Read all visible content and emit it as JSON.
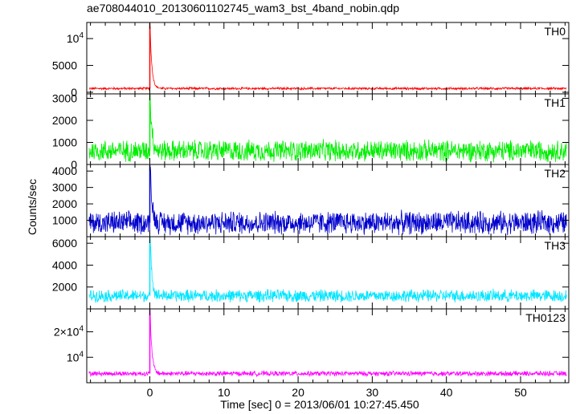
{
  "chart_data": {
    "type": "line",
    "title": "ae708044010_20130601102745_wam3_bst_4band_nobin.qdp",
    "xlabel": "Time [sec] 0 = 2013/06/01 10:27:45.450",
    "ylabel": "Counts/sec",
    "xlim": [
      -8.5,
      56.5
    ],
    "x_ticks": [
      0,
      10,
      20,
      30,
      40,
      50
    ],
    "x_tick_labels": [
      "0",
      "10",
      "20",
      "30",
      "40",
      "50"
    ],
    "x_minor_step": 2,
    "burst_time": 0.0,
    "grid": false,
    "panels": [
      {
        "name": "TH0",
        "color": "#ff0000",
        "ylim": [
          -300,
          13000
        ],
        "y_ticks": [
          {
            "value": 0,
            "label": "0"
          },
          {
            "value": 5000,
            "label": "5000"
          },
          {
            "value": 10000,
            "label": "10",
            "exp": "4"
          }
        ],
        "baseline": 700,
        "noise": 250,
        "peak": 13500,
        "decay": 0.25
      },
      {
        "name": "TH1",
        "color": "#00ee00",
        "ylim": [
          0,
          3200
        ],
        "y_ticks": [
          {
            "value": 0,
            "label": "0"
          },
          {
            "value": 1000,
            "label": "1000"
          },
          {
            "value": 2000,
            "label": "2000"
          },
          {
            "value": 3000,
            "label": "3000"
          }
        ],
        "baseline": 620,
        "noise": 550,
        "peak": 3200,
        "decay": 0.25
      },
      {
        "name": "TH2",
        "color": "#0000cc",
        "ylim": [
          0,
          4400
        ],
        "y_ticks": [
          {
            "value": 1000,
            "label": "1000"
          },
          {
            "value": 2000,
            "label": "2000"
          },
          {
            "value": 3000,
            "label": "3000"
          },
          {
            "value": 4000,
            "label": "4000"
          }
        ],
        "baseline": 850,
        "noise": 800,
        "peak": 4400,
        "decay": 0.25
      },
      {
        "name": "TH3",
        "color": "#00e5ff",
        "ylim": [
          0,
          6600
        ],
        "y_ticks": [
          {
            "value": 2000,
            "label": "2000"
          },
          {
            "value": 4000,
            "label": "4000"
          },
          {
            "value": 6000,
            "label": "6000"
          }
        ],
        "baseline": 1200,
        "noise": 650,
        "peak": 6600,
        "decay": 0.25
      },
      {
        "name": "TH0123",
        "color": "#ff00ff",
        "ylim": [
          0,
          29000
        ],
        "y_ticks": [
          {
            "value": 10000,
            "label": "10",
            "exp": "4"
          },
          {
            "value": 20000,
            "label": "2×10",
            "exp": "4"
          }
        ],
        "baseline": 3600,
        "noise": 1100,
        "peak": 29000,
        "decay": 0.25
      }
    ]
  }
}
